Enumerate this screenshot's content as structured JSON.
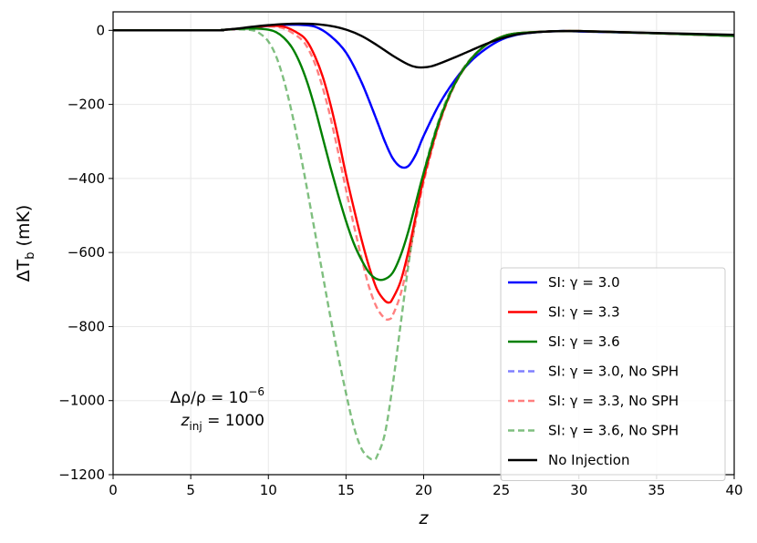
{
  "chart_data": {
    "type": "line",
    "xlabel": "z",
    "ylabel": "ΔT_b (mK)",
    "ylabel_parts": {
      "delta": "ΔT",
      "sub": "b",
      "unit": " (mK)"
    },
    "xlim": [
      0,
      40
    ],
    "ylim": [
      -1200,
      50
    ],
    "xticks": [
      0,
      5,
      10,
      15,
      20,
      25,
      30,
      35,
      40
    ],
    "yticks": [
      0,
      -200,
      -400,
      -600,
      -800,
      -1000,
      -1200
    ],
    "xtick_labels": [
      "0",
      "5",
      "10",
      "15",
      "20",
      "25",
      "30",
      "35",
      "40"
    ],
    "ytick_labels": [
      "0",
      "−200",
      "−400",
      "−600",
      "−800",
      "−1000",
      "−1200"
    ],
    "grid": true,
    "legend_position": "lower-right",
    "annotation": {
      "line1": {
        "lhs": "Δρ/ρ = 10",
        "exp": "−6"
      },
      "line2": {
        "lhs": "z",
        "sub": "inj",
        "rhs": " = 1000"
      }
    },
    "series": [
      {
        "name": "SI: γ = 3.0",
        "label_prefix": "SI: ",
        "label_math": "γ = 3.0",
        "label_suffix": "",
        "color": "#0000ff",
        "dashed": false,
        "opacity": 1,
        "x": [
          0,
          6.5,
          7,
          8,
          9,
          10,
          11,
          12,
          13,
          14,
          15,
          16,
          17,
          17.5,
          18,
          18.5,
          19,
          19.5,
          20,
          21,
          22,
          23,
          24,
          25,
          26,
          27,
          28,
          29,
          30,
          32,
          35,
          40
        ],
        "y": [
          0,
          0,
          1,
          4,
          8,
          12,
          15,
          15,
          10,
          -15,
          -60,
          -140,
          -245,
          -300,
          -345,
          -368,
          -367,
          -335,
          -285,
          -200,
          -135,
          -85,
          -50,
          -25,
          -12,
          -6,
          -3,
          -2,
          -3,
          -5,
          -8,
          -15
        ]
      },
      {
        "name": "SI: γ = 3.3",
        "label_prefix": "SI: ",
        "label_math": "γ = 3.3",
        "label_suffix": "",
        "color": "#ff0000",
        "dashed": false,
        "opacity": 1,
        "x": [
          0,
          6.5,
          7,
          8,
          9,
          10,
          11,
          12,
          12.5,
          13,
          13.5,
          14,
          14.5,
          15,
          15.5,
          16,
          16.5,
          17,
          17.5,
          17.8,
          18,
          18.5,
          19,
          19.5,
          20,
          21,
          22,
          23,
          24,
          25,
          26,
          28,
          30,
          35,
          40
        ],
        "y": [
          0,
          0,
          1,
          4,
          8,
          12,
          10,
          -10,
          -30,
          -70,
          -125,
          -200,
          -290,
          -390,
          -480,
          -565,
          -640,
          -700,
          -730,
          -735,
          -725,
          -680,
          -600,
          -500,
          -400,
          -250,
          -145,
          -80,
          -40,
          -18,
          -8,
          -3,
          -2,
          -8,
          -15
        ]
      },
      {
        "name": "SI: γ = 3.6",
        "label_prefix": "SI: ",
        "label_math": "γ = 3.6",
        "label_suffix": "",
        "color": "#008000",
        "dashed": false,
        "opacity": 1,
        "x": [
          0,
          6.5,
          7,
          8,
          9,
          10,
          10.5,
          11,
          11.5,
          12,
          12.5,
          13,
          13.5,
          14,
          14.5,
          15,
          15.5,
          16,
          16.5,
          17,
          17.5,
          18,
          18.5,
          19,
          19.5,
          20,
          21,
          22,
          23,
          24,
          25,
          26,
          28,
          30,
          35,
          40
        ],
        "y": [
          0,
          0,
          1,
          4,
          5,
          2,
          -5,
          -20,
          -45,
          -85,
          -140,
          -210,
          -290,
          -370,
          -445,
          -515,
          -575,
          -620,
          -655,
          -672,
          -672,
          -655,
          -610,
          -545,
          -465,
          -385,
          -245,
          -145,
          -80,
          -40,
          -18,
          -8,
          -3,
          -2,
          -8,
          -15
        ]
      },
      {
        "name": "SI: γ = 3.0, No SPH",
        "label_prefix": "SI: ",
        "label_math": "γ = 3.0",
        "label_suffix": ", No SPH",
        "color": "#0000ff",
        "dashed": true,
        "opacity": 0.5,
        "x": [
          0,
          6.5,
          7,
          8,
          9,
          10,
          11,
          12,
          13,
          14,
          15,
          16,
          17,
          17.5,
          18,
          18.5,
          19,
          19.5,
          20,
          21,
          22,
          23,
          24,
          25,
          26,
          27,
          28,
          29,
          30,
          32,
          35,
          40
        ],
        "y": [
          0,
          0,
          1,
          4,
          8,
          12,
          15,
          15,
          10,
          -15,
          -60,
          -140,
          -245,
          -300,
          -345,
          -368,
          -367,
          -335,
          -285,
          -200,
          -135,
          -85,
          -50,
          -25,
          -12,
          -6,
          -3,
          -2,
          -3,
          -5,
          -8,
          -15
        ]
      },
      {
        "name": "SI: γ = 3.3, No SPH",
        "label_prefix": "SI: ",
        "label_math": "γ = 3.3",
        "label_suffix": ", No SPH",
        "color": "#ff0000",
        "dashed": true,
        "opacity": 0.5,
        "x": [
          0,
          6.5,
          7,
          8,
          9,
          10,
          11,
          12,
          12.5,
          13,
          13.5,
          14,
          14.5,
          15,
          15.5,
          16,
          16.5,
          17,
          17.5,
          17.8,
          18,
          18.5,
          19,
          19.5,
          20,
          21,
          22,
          23,
          24,
          25,
          26,
          28,
          30,
          35,
          40
        ],
        "y": [
          0,
          0,
          1,
          4,
          8,
          11,
          5,
          -20,
          -45,
          -90,
          -155,
          -235,
          -330,
          -430,
          -525,
          -615,
          -695,
          -750,
          -778,
          -780,
          -770,
          -715,
          -625,
          -515,
          -410,
          -255,
          -148,
          -82,
          -40,
          -18,
          -8,
          -3,
          -2,
          -8,
          -15
        ]
      },
      {
        "name": "SI: γ = 3.6, No SPH",
        "label_prefix": "SI: ",
        "label_math": "γ = 3.6",
        "label_suffix": ", No SPH",
        "color": "#008000",
        "dashed": true,
        "opacity": 0.5,
        "x": [
          0,
          6.5,
          7,
          8,
          9,
          9.5,
          10,
          10.5,
          11,
          11.5,
          12,
          12.5,
          13,
          13.5,
          14,
          14.5,
          15,
          15.5,
          16,
          16.5,
          16.8,
          17,
          17.5,
          18,
          18.5,
          19,
          19.5,
          20,
          21,
          22,
          23,
          24,
          25,
          26,
          28,
          30,
          35,
          40
        ],
        "y": [
          0,
          0,
          1,
          3,
          0,
          -10,
          -30,
          -70,
          -135,
          -220,
          -320,
          -430,
          -545,
          -660,
          -775,
          -880,
          -980,
          -1070,
          -1130,
          -1155,
          -1158,
          -1150,
          -1090,
          -960,
          -800,
          -640,
          -500,
          -385,
          -240,
          -140,
          -78,
          -40,
          -18,
          -8,
          -3,
          -2,
          -8,
          -15
        ]
      },
      {
        "name": "No Injection",
        "label_prefix": "No Injection",
        "label_math": "",
        "label_suffix": "",
        "color": "#000000",
        "dashed": false,
        "opacity": 1,
        "x": [
          0,
          6.5,
          7,
          8,
          9,
          10,
          11,
          12,
          13,
          14,
          15,
          16,
          17,
          18,
          19,
          19.5,
          20,
          20.5,
          21,
          22,
          23,
          24,
          25,
          26,
          27,
          28,
          29,
          30,
          32,
          35,
          40
        ],
        "y": [
          0,
          0,
          1,
          5,
          10,
          14,
          17,
          18,
          17,
          12,
          2,
          -15,
          -40,
          -68,
          -92,
          -99,
          -100,
          -97,
          -90,
          -73,
          -55,
          -37,
          -22,
          -11,
          -6,
          -3,
          -2,
          -2,
          -4,
          -7,
          -12
        ]
      }
    ]
  }
}
